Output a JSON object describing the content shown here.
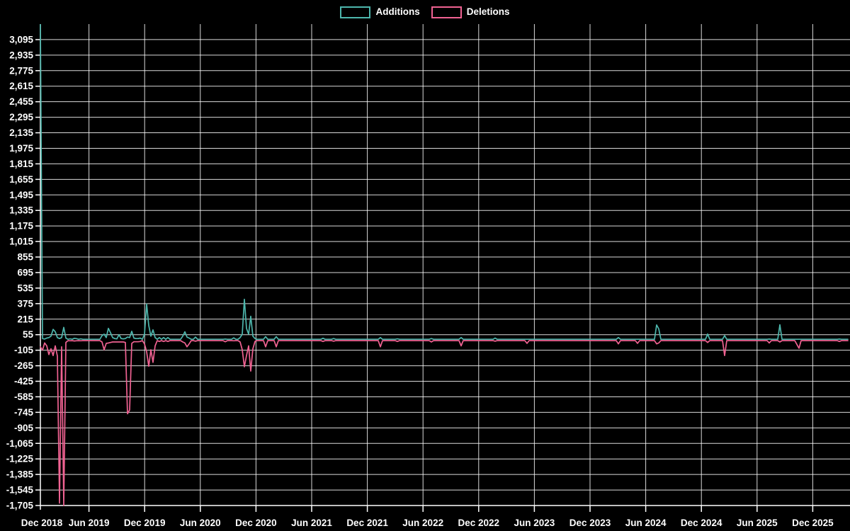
{
  "page": {
    "background": "#000000",
    "text_color": "#ffffff",
    "grid_color": "#ffffff"
  },
  "chart_data": {
    "type": "line",
    "title": "",
    "legend_position": "top-center",
    "grid": true,
    "legend_items": [
      {
        "label": "Additions",
        "color": "#4db6ac"
      },
      {
        "label": "Deletions",
        "color": "#f06292"
      }
    ],
    "x_axis": {
      "unit": "week",
      "tick_labels": [
        "Dec 2018",
        "Jun 2019",
        "Dec 2019",
        "Jun 2020",
        "Dec 2020",
        "Jun 2021",
        "Dec 2021",
        "Jun 2022",
        "Dec 2022",
        "Jun 2023",
        "Dec 2023",
        "Jun 2024",
        "Dec 2024",
        "Jun 2025",
        "Dec 2025"
      ]
    },
    "y_axis": {
      "min": -1705,
      "max": 3255,
      "tick_step": 160,
      "tick_labels": [
        "3,095",
        "2,935",
        "2,775",
        "2,615",
        "2,455",
        "2,295",
        "2,135",
        "1,975",
        "1,815",
        "1,655",
        "1,495",
        "1,335",
        "1,175",
        "1,015",
        "855",
        "695",
        "535",
        "375",
        "215",
        "55",
        "-105",
        "-265",
        "-425",
        "-585",
        "-745",
        "-905",
        "-1,065",
        "-1,225",
        "-1,385",
        "-1,545",
        "-1,705"
      ]
    },
    "weeks": 381,
    "series": [
      {
        "name": "Additions",
        "color": "#4db6ac",
        "baseline": 8
      },
      {
        "name": "Deletions",
        "color": "#f06292",
        "baseline": -6
      }
    ],
    "point_format": [
      "week_index",
      "additions",
      "deletions"
    ],
    "sparse_points": [
      [
        0,
        3250,
        -70
      ],
      [
        1,
        15,
        -105
      ],
      [
        2,
        10,
        -30
      ],
      [
        3,
        20,
        -60
      ],
      [
        4,
        25,
        -150
      ],
      [
        5,
        40,
        -90
      ],
      [
        6,
        110,
        -160
      ],
      [
        7,
        85,
        -60
      ],
      [
        8,
        25,
        -165
      ],
      [
        9,
        15,
        -1680
      ],
      [
        10,
        25,
        -70
      ],
      [
        11,
        130,
        -1705
      ],
      [
        12,
        20,
        -25
      ],
      [
        14,
        12,
        -8
      ],
      [
        16,
        18,
        -10
      ],
      [
        17,
        14,
        -8
      ],
      [
        19,
        12,
        -8
      ],
      [
        29,
        45,
        -20
      ],
      [
        30,
        60,
        -100
      ],
      [
        31,
        25,
        -35
      ],
      [
        32,
        120,
        -30
      ],
      [
        33,
        75,
        -25
      ],
      [
        34,
        25,
        -20
      ],
      [
        35,
        15,
        -20
      ],
      [
        36,
        12,
        -20
      ],
      [
        37,
        55,
        -20
      ],
      [
        38,
        15,
        -20
      ],
      [
        39,
        12,
        -20
      ],
      [
        40,
        15,
        -25
      ],
      [
        41,
        30,
        -760
      ],
      [
        42,
        25,
        -720
      ],
      [
        43,
        90,
        -35
      ],
      [
        44,
        20,
        -18
      ],
      [
        45,
        15,
        -18
      ],
      [
        46,
        15,
        -18
      ],
      [
        47,
        20,
        -15
      ],
      [
        49,
        60,
        -40
      ],
      [
        50,
        370,
        -120
      ],
      [
        51,
        150,
        -270
      ],
      [
        52,
        40,
        -100
      ],
      [
        53,
        105,
        -230
      ],
      [
        54,
        25,
        -60
      ],
      [
        56,
        25,
        -15
      ],
      [
        58,
        25,
        -15
      ],
      [
        60,
        25,
        -15
      ],
      [
        67,
        40,
        -20
      ],
      [
        68,
        85,
        -30
      ],
      [
        69,
        30,
        -70
      ],
      [
        70,
        20,
        -40
      ],
      [
        73,
        30,
        -12
      ],
      [
        87,
        10,
        -18
      ],
      [
        91,
        22,
        -8
      ],
      [
        94,
        25,
        -20
      ],
      [
        95,
        60,
        -100
      ],
      [
        96,
        420,
        -275
      ],
      [
        97,
        120,
        -160
      ],
      [
        98,
        60,
        -60
      ],
      [
        99,
        245,
        -320
      ],
      [
        100,
        40,
        -90
      ],
      [
        101,
        15,
        -15
      ],
      [
        106,
        35,
        -70
      ],
      [
        111,
        35,
        -70
      ],
      [
        133,
        18,
        -15
      ],
      [
        138,
        15,
        -12
      ],
      [
        160,
        25,
        -70
      ],
      [
        168,
        12,
        -15
      ],
      [
        184,
        15,
        -20
      ],
      [
        198,
        25,
        -60
      ],
      [
        214,
        20,
        -12
      ],
      [
        229,
        8,
        -35
      ],
      [
        272,
        25,
        -40
      ],
      [
        281,
        8,
        -35
      ],
      [
        290,
        155,
        -40
      ],
      [
        291,
        115,
        -30
      ],
      [
        314,
        62,
        -25
      ],
      [
        322,
        45,
        -160
      ],
      [
        343,
        10,
        -30
      ],
      [
        348,
        157,
        -20
      ],
      [
        356,
        8,
        -45
      ],
      [
        357,
        8,
        -85
      ],
      [
        376,
        10,
        -15
      ]
    ]
  }
}
